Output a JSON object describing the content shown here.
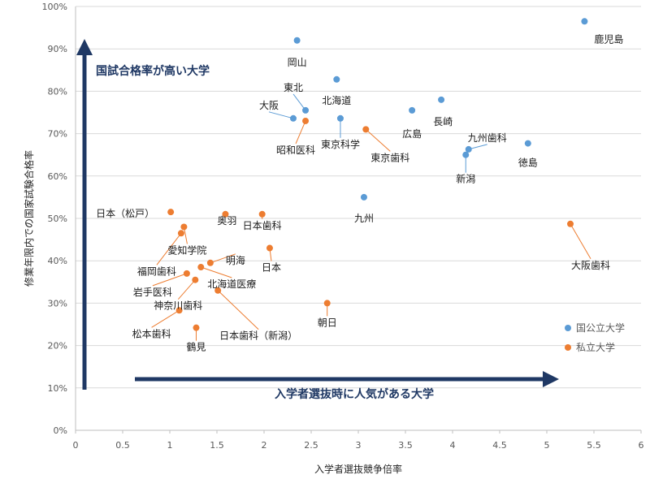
{
  "chart_data": {
    "type": "scatter",
    "xlabel": "入学者選抜競争倍率",
    "ylabel": "修業年限内での国家試験合格率",
    "xlim": [
      0,
      6
    ],
    "ylim": [
      0,
      100
    ],
    "x_ticks": [
      "0",
      "0.5",
      "1",
      "1.5",
      "2",
      "2.5",
      "3",
      "3.5",
      "4",
      "4.5",
      "5",
      "5.5",
      "6"
    ],
    "y_ticks": [
      "0%",
      "10%",
      "20%",
      "30%",
      "40%",
      "50%",
      "60%",
      "70%",
      "80%",
      "90%",
      "100%"
    ],
    "grid": "horizontal",
    "legend": "bottom-right",
    "series": [
      {
        "name": "国公立大学",
        "color": "#5b9bd5",
        "points": [
          {
            "x": 5.4,
            "y": 96.5,
            "label": "鹿児島"
          },
          {
            "x": 2.35,
            "y": 92.0,
            "label": "岡山"
          },
          {
            "x": 2.77,
            "y": 82.8,
            "label": "北海道"
          },
          {
            "x": 3.88,
            "y": 78.0,
            "label": "長崎"
          },
          {
            "x": 2.44,
            "y": 75.5,
            "label": "東北"
          },
          {
            "x": 3.57,
            "y": 75.5,
            "label": "広島"
          },
          {
            "x": 2.31,
            "y": 73.6,
            "label": "大阪"
          },
          {
            "x": 2.81,
            "y": 73.6,
            "label": "東京科学"
          },
          {
            "x": 4.8,
            "y": 67.7,
            "label": "徳島"
          },
          {
            "x": 4.17,
            "y": 66.3,
            "label": "九州歯科"
          },
          {
            "x": 4.14,
            "y": 65.0,
            "label": "新潟"
          },
          {
            "x": 3.06,
            "y": 55.0,
            "label": "九州"
          }
        ]
      },
      {
        "name": "私立大学",
        "color": "#ed7d31",
        "points": [
          {
            "x": 2.44,
            "y": 73.0,
            "label": "昭和医科"
          },
          {
            "x": 3.08,
            "y": 71.0,
            "label": "東京歯科"
          },
          {
            "x": 1.01,
            "y": 51.5,
            "label": "日本（松戸）"
          },
          {
            "x": 1.59,
            "y": 51.0,
            "label": "奥羽"
          },
          {
            "x": 1.98,
            "y": 51.0,
            "label": "日本歯科"
          },
          {
            "x": 5.25,
            "y": 48.7,
            "label": "大阪歯科"
          },
          {
            "x": 1.15,
            "y": 48.0,
            "label": "愛知学院"
          },
          {
            "x": 1.12,
            "y": 46.5,
            "label": "福岡歯科"
          },
          {
            "x": 2.06,
            "y": 43.0,
            "label": "日本"
          },
          {
            "x": 1.43,
            "y": 39.5,
            "label": "明海"
          },
          {
            "x": 1.33,
            "y": 38.5,
            "label": "北海道医療"
          },
          {
            "x": 1.18,
            "y": 37.0,
            "label": "岩手医科"
          },
          {
            "x": 1.27,
            "y": 35.5,
            "label": "神奈川歯科"
          },
          {
            "x": 1.51,
            "y": 33.0,
            "label": "日本歯科（新潟）"
          },
          {
            "x": 2.67,
            "y": 30.0,
            "label": "朝日"
          },
          {
            "x": 1.1,
            "y": 28.3,
            "label": "松本歯科"
          },
          {
            "x": 1.28,
            "y": 24.2,
            "label": "鶴見"
          }
        ]
      }
    ],
    "annotations": [
      {
        "text": "国試合格率が高い大学",
        "direction": "up",
        "color": "#1f3864"
      },
      {
        "text": "入学者選抜時に人気がある大学",
        "direction": "right",
        "color": "#1f3864"
      }
    ]
  }
}
